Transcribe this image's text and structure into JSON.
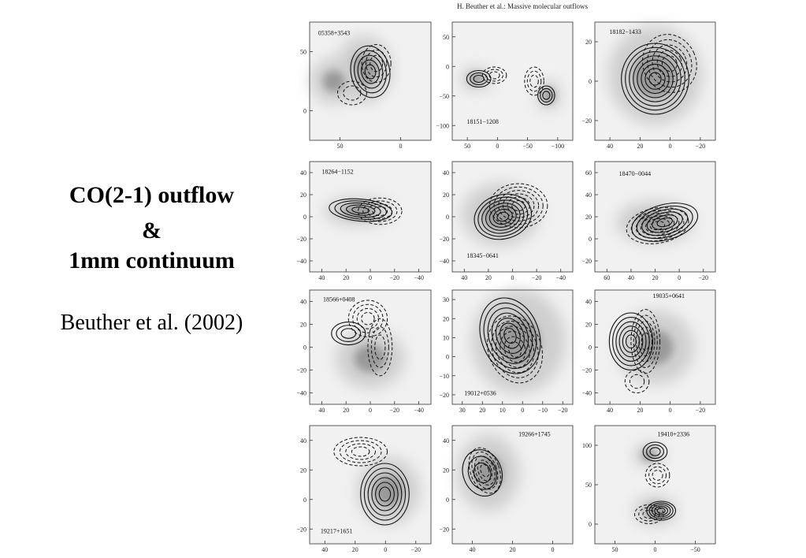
{
  "slide": {
    "title_line1": "CO(2-1) outflow",
    "title_line2": "&",
    "title_line3": "1mm continuum",
    "citation": "Beuther et al. (2002)"
  },
  "figure": {
    "header": "H. Beuther et al.: Massive molecular outflows",
    "panels": [
      {
        "label": "05358+3543",
        "yticks": [
          "50",
          "0"
        ],
        "xticks": [
          "50",
          "0"
        ]
      },
      {
        "label": "18151−1208",
        "yticks": [
          "50",
          "0",
          "−50",
          "−100"
        ],
        "xticks": [
          "50",
          "0",
          "−50",
          "−100"
        ]
      },
      {
        "label": "18182−1433",
        "yticks": [
          "20",
          "0",
          "−20"
        ],
        "xticks": [
          "40",
          "20",
          "0",
          "−20"
        ]
      },
      {
        "label": "18264−1152",
        "yticks": [
          "40",
          "20",
          "0",
          "−20",
          "−40"
        ],
        "xticks": [
          "40",
          "20",
          "0",
          "−20",
          "−40"
        ]
      },
      {
        "label": "18345−0641",
        "yticks": [
          "40",
          "20",
          "0",
          "−20",
          "−40"
        ],
        "xticks": [
          "40",
          "20",
          "0",
          "−20",
          "−40"
        ]
      },
      {
        "label": "18470−0044",
        "yticks": [
          "60",
          "40",
          "20",
          "0",
          "−20"
        ],
        "xticks": [
          "60",
          "40",
          "20",
          "0",
          "−20"
        ]
      },
      {
        "label": "18566+0408",
        "yticks": [
          "40",
          "20",
          "0",
          "−20",
          "−40"
        ],
        "xticks": [
          "40",
          "20",
          "0",
          "−20",
          "−40"
        ]
      },
      {
        "label": "19012+0536",
        "yticks": [
          "30",
          "20",
          "10",
          "0",
          "−10",
          "−20"
        ],
        "xticks": [
          "30",
          "20",
          "10",
          "0",
          "−10",
          "−20"
        ]
      },
      {
        "label": "19035+0641",
        "yticks": [
          "40",
          "20",
          "0",
          "−20",
          "−40"
        ],
        "xticks": [
          "40",
          "20",
          "0",
          "−20"
        ]
      },
      {
        "label": "19217+1651",
        "yticks": [
          "40",
          "20",
          "0",
          "−20"
        ],
        "xticks": [
          "40",
          "20",
          "0",
          "−20"
        ]
      },
      {
        "label": "19266+1745",
        "yticks": [
          "40",
          "20",
          "0",
          "−20"
        ],
        "xticks": [
          "40",
          "20",
          "0"
        ]
      },
      {
        "label": "19410+2336",
        "yticks": [
          "100",
          "50",
          "0"
        ],
        "xticks": [
          "50",
          "0",
          "−50"
        ]
      }
    ]
  }
}
